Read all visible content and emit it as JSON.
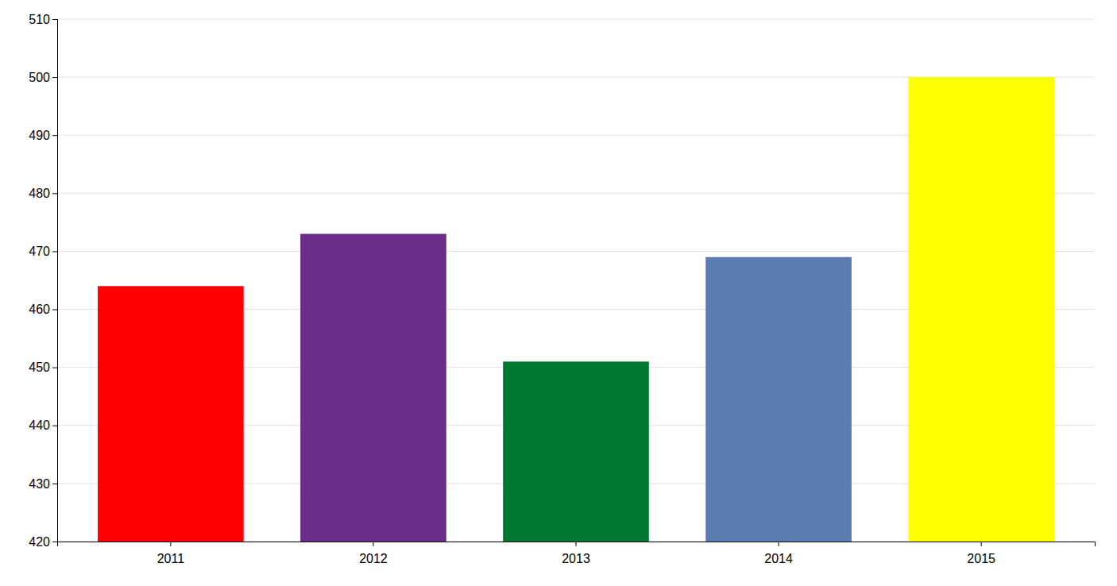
{
  "chart_data": {
    "type": "bar",
    "categories": [
      "2011",
      "2012",
      "2013",
      "2014",
      "2015"
    ],
    "values": [
      464,
      473,
      451,
      469,
      500
    ],
    "colors": [
      "#ff0000",
      "#6b2d8b",
      "#007a33",
      "#5b7db1",
      "#ffff00"
    ],
    "ylim": [
      420,
      510
    ],
    "yticks": [
      420,
      430,
      440,
      450,
      460,
      470,
      480,
      490,
      500,
      510
    ],
    "grid": true
  }
}
